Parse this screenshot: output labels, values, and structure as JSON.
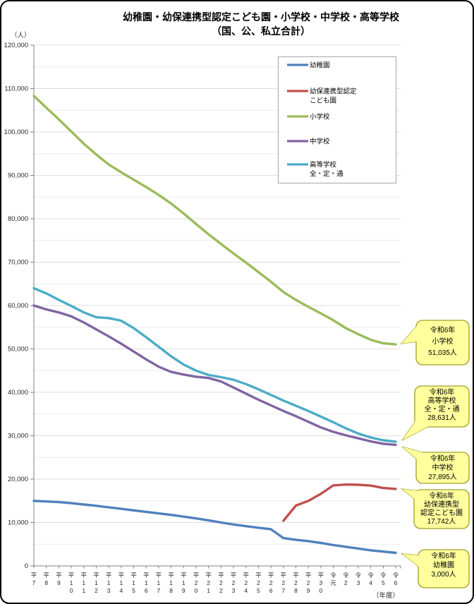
{
  "page": {
    "title_line1": "幼稚園・幼保連携型認定こども園・小学校・中学校・高等学校",
    "title_line2": "（国、公、私立合計）",
    "y_axis_unit": "（人）",
    "x_axis_unit": "（年度）"
  },
  "chart_data": {
    "type": "line",
    "x_labels": [
      "平7",
      "平8",
      "平9",
      "平10",
      "平11",
      "平12",
      "平13",
      "平14",
      "平15",
      "平16",
      "平17",
      "平18",
      "平19",
      "平20",
      "平21",
      "平22",
      "平23",
      "平24",
      "平25",
      "平26",
      "平27",
      "平28",
      "平29",
      "平30",
      "令元",
      "令2",
      "令3",
      "令4",
      "令5",
      "令6"
    ],
    "ylim": [
      0,
      120000
    ],
    "y_tick_step": 10000,
    "y_minor_step": 5000,
    "series": [
      {
        "name": "幼稚園",
        "legend_lines": [
          "幼稚園"
        ],
        "color": "#4F81BD",
        "values": [
          15000,
          14850,
          14700,
          14450,
          14150,
          13850,
          13500,
          13150,
          12800,
          12450,
          12100,
          11750,
          11350,
          10950,
          10500,
          10000,
          9550,
          9150,
          8800,
          8450,
          6400,
          6000,
          5700,
          5300,
          4800,
          4400,
          4000,
          3600,
          3300,
          3000
        ]
      },
      {
        "name": "幼保連携型認定こども園",
        "legend_lines": [
          "幼保連携型認定",
          "こども園"
        ],
        "color": "#C0504D",
        "values": [
          null,
          null,
          null,
          null,
          null,
          null,
          null,
          null,
          null,
          null,
          null,
          null,
          null,
          null,
          null,
          null,
          null,
          null,
          null,
          null,
          10400,
          13900,
          15000,
          16600,
          18550,
          18750,
          18700,
          18500,
          17950,
          17742
        ]
      },
      {
        "name": "小学校",
        "legend_lines": [
          "小学校"
        ],
        "color": "#9BBB59",
        "values": [
          108300,
          105600,
          102900,
          100100,
          97300,
          94800,
          92500,
          90700,
          89000,
          87300,
          85500,
          83500,
          81200,
          78800,
          76400,
          74200,
          72000,
          69900,
          67700,
          65500,
          63100,
          61300,
          59700,
          58200,
          56600,
          54800,
          53400,
          52100,
          51300,
          51035
        ]
      },
      {
        "name": "中学校",
        "legend_lines": [
          "中学校"
        ],
        "color": "#8064A2",
        "values": [
          60000,
          59100,
          58400,
          57500,
          56100,
          54500,
          52900,
          51200,
          49400,
          47600,
          45900,
          44700,
          44100,
          43600,
          43300,
          42500,
          41100,
          39700,
          38300,
          37000,
          35700,
          34500,
          33200,
          31900,
          30900,
          30100,
          29400,
          28700,
          28150,
          27895
        ]
      },
      {
        "name": "高等学校 全・定・通",
        "legend_lines": [
          "高等学校",
          "全・定・通"
        ],
        "color": "#4BACC6",
        "values": [
          64000,
          62800,
          61300,
          59900,
          58400,
          57300,
          57100,
          56500,
          54800,
          52700,
          50500,
          48300,
          46400,
          45000,
          44000,
          43500,
          42900,
          41900,
          40700,
          39400,
          38100,
          36900,
          35700,
          34400,
          33100,
          31700,
          30500,
          29600,
          28950,
          28631
        ]
      }
    ],
    "callouts": [
      {
        "lines": [
          "令和6年",
          "小学校",
          "51,035人"
        ]
      },
      {
        "lines": [
          "令和6年",
          "高等学校",
          "全・定・通",
          "28,631人"
        ]
      },
      {
        "lines": [
          "令和6年",
          "中学校",
          "27,895人"
        ]
      },
      {
        "lines": [
          "令和6年",
          "幼保連携型",
          "認定こども園",
          "17,742人"
        ]
      },
      {
        "lines": [
          "令和6年",
          "幼稚園",
          "3,000人"
        ]
      }
    ]
  }
}
